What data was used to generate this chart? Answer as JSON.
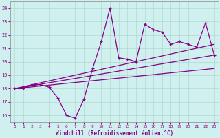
{
  "xlabel": "Windchill (Refroidissement éolien,°C)",
  "bg_color": "#cff0ee",
  "grid_color": "#b0d8d0",
  "line_color": "#880088",
  "x_ticks": [
    0,
    1,
    2,
    3,
    4,
    5,
    6,
    7,
    8,
    9,
    10,
    11,
    12,
    13,
    14,
    15,
    16,
    17,
    18,
    19,
    20,
    21,
    22,
    23
  ],
  "y_ticks": [
    16,
    17,
    18,
    19,
    20,
    21,
    22,
    23,
    24
  ],
  "ylim": [
    15.5,
    24.5
  ],
  "xlim": [
    -0.5,
    23.5
  ],
  "series1": [
    18.0,
    18.0,
    18.3,
    18.3,
    18.1,
    17.3,
    16.0,
    15.8,
    17.2,
    19.5,
    21.5,
    24.0,
    20.3,
    20.2,
    20.0,
    22.8,
    22.4,
    22.2,
    21.3,
    21.5,
    21.3,
    21.1,
    22.9,
    20.5
  ],
  "series2_x": [
    0,
    23
  ],
  "series2_y": [
    18.0,
    21.3
  ],
  "series3_x": [
    0,
    23
  ],
  "series3_y": [
    18.0,
    20.5
  ],
  "series4_x": [
    0,
    23
  ],
  "series4_y": [
    18.0,
    19.5
  ]
}
